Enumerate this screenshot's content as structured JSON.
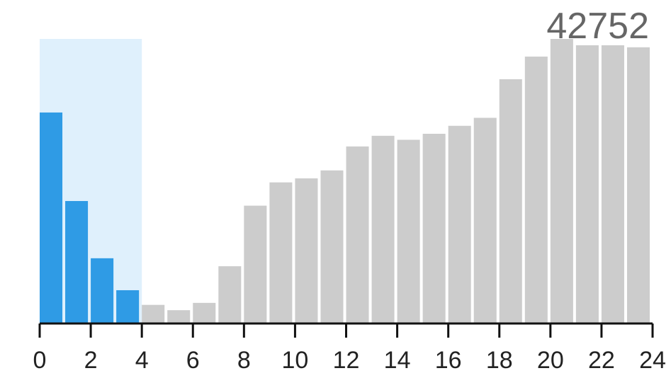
{
  "chart_data": {
    "type": "bar",
    "title": "",
    "xlabel": "",
    "ylabel": "",
    "max_label": "42752",
    "x_domain": [
      0,
      24
    ],
    "ylim": [
      0,
      42752
    ],
    "x_ticks": [
      "0",
      "2",
      "4",
      "6",
      "8",
      "10",
      "12",
      "14",
      "16",
      "18",
      "20",
      "22",
      "24"
    ],
    "brush_range": [
      0,
      4
    ],
    "bins": [
      {
        "x0": 0,
        "x1": 1,
        "value": 31700
      },
      {
        "x0": 1,
        "x1": 2,
        "value": 18400
      },
      {
        "x0": 2,
        "x1": 3,
        "value": 9800
      },
      {
        "x0": 3,
        "x1": 4,
        "value": 5000
      },
      {
        "x0": 4,
        "x1": 5,
        "value": 2800
      },
      {
        "x0": 5,
        "x1": 6,
        "value": 2000
      },
      {
        "x0": 6,
        "x1": 7,
        "value": 3100
      },
      {
        "x0": 7,
        "x1": 8,
        "value": 8600
      },
      {
        "x0": 8,
        "x1": 9,
        "value": 17700
      },
      {
        "x0": 9,
        "x1": 10,
        "value": 21200
      },
      {
        "x0": 10,
        "x1": 11,
        "value": 21800
      },
      {
        "x0": 11,
        "x1": 12,
        "value": 23000
      },
      {
        "x0": 12,
        "x1": 13,
        "value": 26600
      },
      {
        "x0": 13,
        "x1": 14,
        "value": 28200
      },
      {
        "x0": 14,
        "x1": 15,
        "value": 27600
      },
      {
        "x0": 15,
        "x1": 16,
        "value": 28500
      },
      {
        "x0": 16,
        "x1": 17,
        "value": 29700
      },
      {
        "x0": 17,
        "x1": 18,
        "value": 30900
      },
      {
        "x0": 18,
        "x1": 19,
        "value": 36700
      },
      {
        "x0": 19,
        "x1": 20,
        "value": 40100
      },
      {
        "x0": 20,
        "x1": 21,
        "value": 42752
      },
      {
        "x0": 21,
        "x1": 22,
        "value": 41800
      },
      {
        "x0": 22,
        "x1": 23,
        "value": 41800
      },
      {
        "x0": 23,
        "x1": 24,
        "value": 41500
      }
    ],
    "colors": {
      "selected_bar": "#2f9be5",
      "unselected_bar": "#cccccc",
      "brush_fill": "#dff0fc",
      "axis": "#111111",
      "tick_label": "#222222",
      "max_label": "#666666"
    },
    "grid": false,
    "legend": "none"
  }
}
